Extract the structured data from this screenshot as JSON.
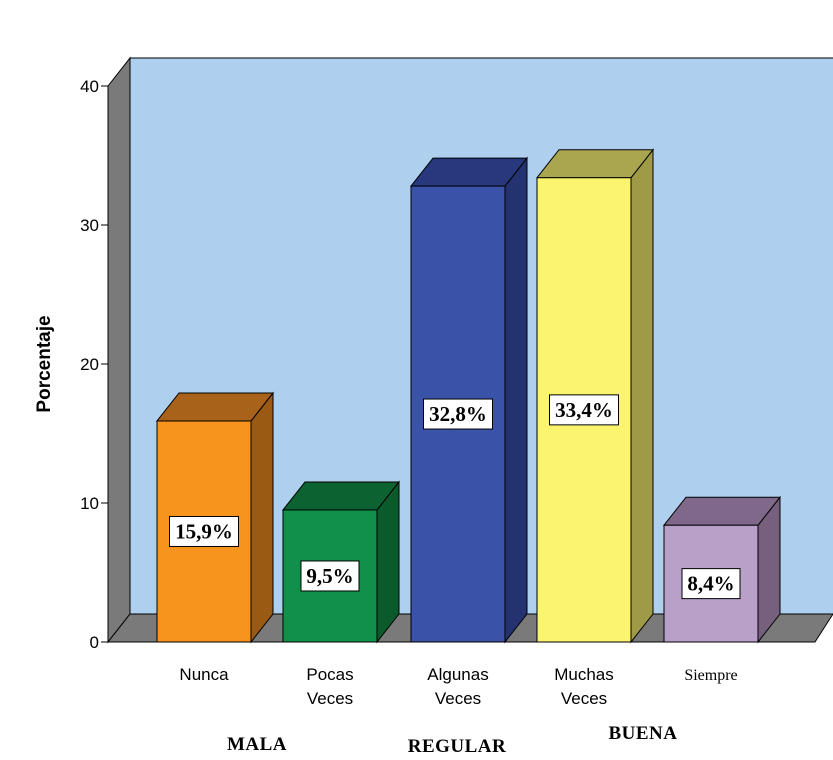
{
  "chart_data": {
    "type": "bar",
    "title": "",
    "xlabel": "",
    "ylabel": "Porcentaje",
    "ylim": [
      0,
      40
    ],
    "yticks": [
      0,
      10,
      20,
      30,
      40
    ],
    "grid": false,
    "legend": "none",
    "categories": [
      "Nunca",
      "Pocas Veces",
      "Algunas Veces",
      "Muchas Veces",
      "Siempre"
    ],
    "category_lines": [
      [
        "Nunca"
      ],
      [
        "Pocas",
        "Veces"
      ],
      [
        "Algunas",
        "Veces"
      ],
      [
        "Muchas",
        "Veces"
      ],
      [
        "Siempre"
      ]
    ],
    "values": [
      15.9,
      9.5,
      32.8,
      33.4,
      8.4
    ],
    "data_labels": [
      "15,9%",
      "9,5%",
      "32,8%",
      "33,4%",
      "8,4%"
    ],
    "colors": [
      "#f7941d",
      "#109048",
      "#3a52a8",
      "#fbf46e",
      "#b9a0c8"
    ],
    "side_colors": [
      "#9a5a14",
      "#0a5a2c",
      "#243270",
      "#9e9a48",
      "#76607e"
    ],
    "top_colors": [
      "#a8621a",
      "#0c6230",
      "#28387c",
      "#aaa650",
      "#80688a"
    ],
    "groups": [
      "MALA",
      "REGULAR",
      "BUENA"
    ],
    "background_color": "#aed0ee",
    "wall_color": "#7a7a7a"
  }
}
